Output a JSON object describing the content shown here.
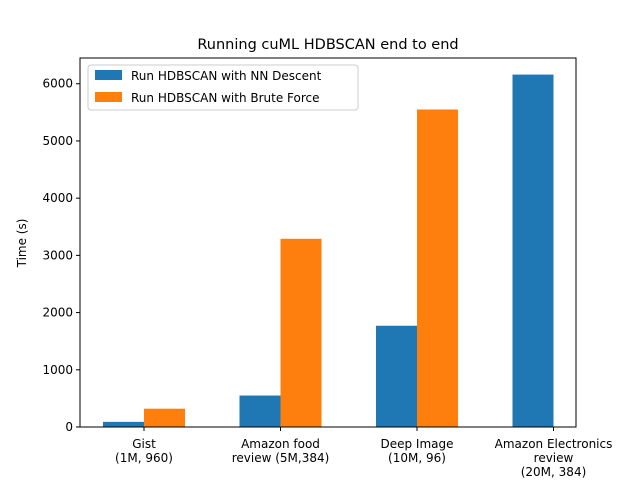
{
  "chart_data": {
    "type": "bar",
    "title": "Running cuML HDBSCAN end to end",
    "xlabel": "",
    "ylabel": "Time (s)",
    "categories": [
      [
        "Gist",
        "(1M, 960)"
      ],
      [
        "Amazon food",
        "review (5M,384)"
      ],
      [
        "Deep Image",
        "(10M, 96)"
      ],
      [
        "Amazon Electronics",
        "review",
        "(20M, 384)"
      ]
    ],
    "series": [
      {
        "name": "Run HDBSCAN with NN Descent",
        "color": "#1f77b4",
        "values": [
          90,
          550,
          1770,
          6160
        ]
      },
      {
        "name": "Run HDBSCAN with Brute Force",
        "color": "#ff7f0e",
        "values": [
          320,
          3290,
          5550,
          null
        ]
      }
    ],
    "ylim": [
      0,
      6450
    ],
    "yticks": [
      0,
      1000,
      2000,
      3000,
      4000,
      5000,
      6000
    ],
    "grid": false,
    "legend_position": "top-left"
  }
}
